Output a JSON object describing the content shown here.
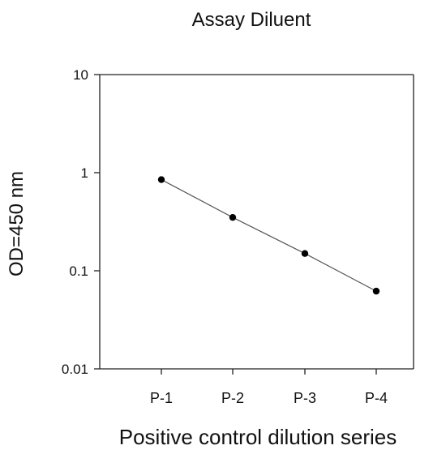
{
  "chart_data": {
    "type": "line",
    "title": "Assay Diluent",
    "xlabel": "Positive control dilution series",
    "ylabel": "OD=450 nm",
    "categories": [
      "P-1",
      "P-2",
      "P-3",
      "P-4"
    ],
    "series": [
      {
        "values": [
          0.85,
          0.35,
          0.15,
          0.062
        ]
      }
    ],
    "yscale": "log",
    "ylim": [
      0.01,
      10
    ],
    "yticks": [
      10,
      1,
      0.1,
      0.01
    ],
    "ytick_labels": [
      "10",
      "1",
      "0.1",
      "0.01"
    ],
    "grid": false,
    "colors": {
      "line": "#555555",
      "marker": "#000000",
      "axis": "#222222"
    }
  }
}
